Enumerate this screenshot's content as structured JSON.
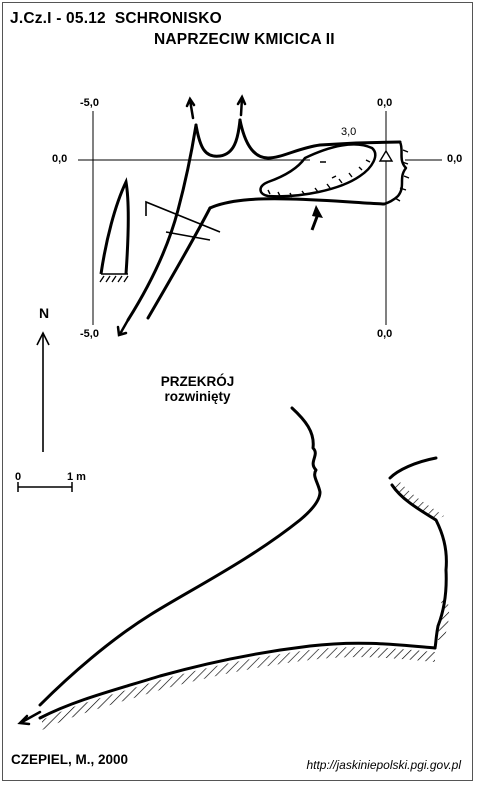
{
  "header": {
    "code": "J.Cz.I - 05.12",
    "name_line1": "SCHRONISKO",
    "name_line2": "NAPRZECIW KMICICA II"
  },
  "plan": {
    "coordinates": {
      "top_left": "-5,0",
      "top_right": "0,0",
      "left_middle": "0,0",
      "right_middle": "0,0",
      "bottom_left": "-5,0",
      "bottom_right": "0,0"
    },
    "height_label": "3,0"
  },
  "north": {
    "label": "N"
  },
  "scale": {
    "start": "0",
    "end": "1 m"
  },
  "section": {
    "title": "PRZEKRÓJ",
    "subtitle": "rozwinięty"
  },
  "footer": {
    "author": "CZEPIEL, M., 2000",
    "source": "http://jaskiniepolski.pgi.gov.pl"
  }
}
